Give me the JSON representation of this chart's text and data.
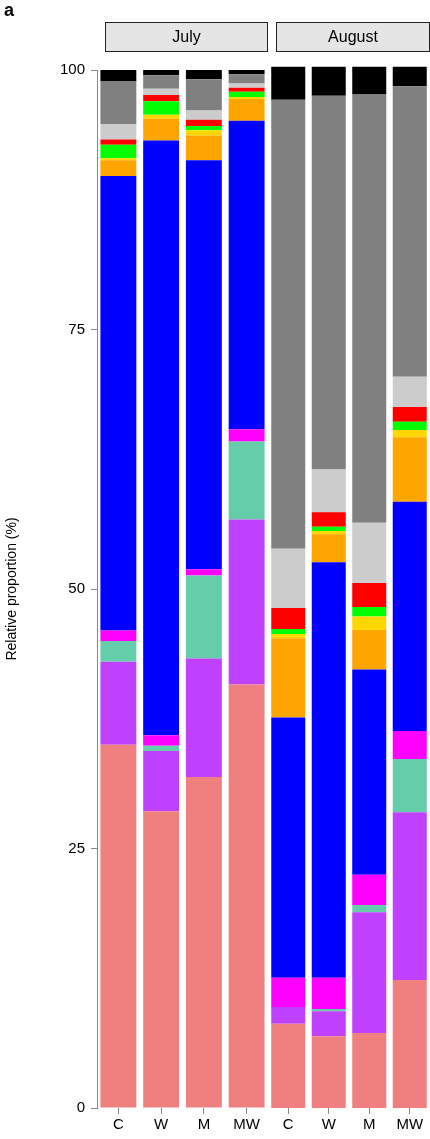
{
  "chart_data": [
    {
      "type": "bar",
      "title": "July",
      "ylabel": "Relative proportion (%)",
      "annotations": [
        "a"
      ],
      "categories": [
        "C",
        "W",
        "M",
        "MW"
      ],
      "stacked": true,
      "ylim": [
        0,
        100
      ],
      "yticks": [
        0,
        25,
        50,
        75,
        100
      ],
      "grid": false,
      "legend": false,
      "series": [
        {
          "color": "#f08080",
          "values": [
            35.0,
            28.6,
            31.9,
            40.8
          ]
        },
        {
          "color": "#bf40ff",
          "values": [
            8.0,
            5.8,
            11.4,
            15.9
          ]
        },
        {
          "color": "#66cdaa",
          "values": [
            2.0,
            0.5,
            8.0,
            7.5
          ]
        },
        {
          "color": "#ff00ff",
          "values": [
            1.0,
            1.0,
            0.6,
            1.2
          ]
        },
        {
          "color": "#0000ff",
          "values": [
            43.8,
            57.3,
            39.4,
            29.7
          ]
        },
        {
          "color": "#ffa500",
          "values": [
            1.5,
            2.1,
            2.4,
            2.1
          ]
        },
        {
          "color": "#ffd700",
          "values": [
            0.2,
            0.4,
            0.5,
            0.2
          ]
        },
        {
          "color": "#00ff00",
          "values": [
            1.3,
            1.3,
            0.4,
            0.5
          ]
        },
        {
          "color": "#ff0000",
          "values": [
            0.5,
            0.6,
            0.6,
            0.4
          ]
        },
        {
          "color": "#cccccc",
          "values": [
            1.5,
            0.6,
            0.9,
            0.4
          ]
        },
        {
          "color": "#808080",
          "values": [
            4.1,
            1.3,
            3.0,
            0.9
          ]
        },
        {
          "color": "#000000",
          "values": [
            1.1,
            0.5,
            0.9,
            0.4
          ]
        }
      ]
    },
    {
      "type": "bar",
      "title": "August",
      "categories": [
        "C",
        "W",
        "M",
        "MW"
      ],
      "stacked": true,
      "ylim": [
        0,
        100
      ],
      "yticks": [
        0,
        25,
        50,
        75,
        100
      ],
      "grid": false,
      "legend": false,
      "tick_labels": "x",
      "series": [
        {
          "color": "#f08080",
          "values": [
            8.1,
            6.9,
            7.2,
            12.3
          ]
        },
        {
          "color": "#bf40ff",
          "values": [
            1.6,
            2.4,
            11.6,
            16.1
          ]
        },
        {
          "color": "#66cdaa",
          "values": [
            0,
            0.2,
            0.7,
            5.1
          ]
        },
        {
          "color": "#ff00ff",
          "values": [
            2.8,
            3.0,
            2.9,
            2.7
          ]
        },
        {
          "color": "#0000ff",
          "values": [
            25.0,
            39.9,
            19.7,
            22.0
          ]
        },
        {
          "color": "#ffa500",
          "values": [
            7.6,
            2.7,
            3.8,
            6.2
          ]
        },
        {
          "color": "#ffd700",
          "values": [
            0.4,
            0.3,
            1.3,
            0.7
          ]
        },
        {
          "color": "#00ff00",
          "values": [
            0.5,
            0.4,
            0.9,
            0.8
          ]
        },
        {
          "color": "#ff0000",
          "values": [
            2.0,
            1.4,
            2.3,
            1.4
          ]
        },
        {
          "color": "#cccccc",
          "values": [
            5.7,
            4.1,
            5.8,
            2.9
          ]
        },
        {
          "color": "#808080",
          "values": [
            43.1,
            35.9,
            41.1,
            27.9
          ]
        },
        {
          "color": "#000000",
          "values": [
            3.2,
            2.8,
            2.7,
            1.9
          ]
        }
      ]
    }
  ]
}
